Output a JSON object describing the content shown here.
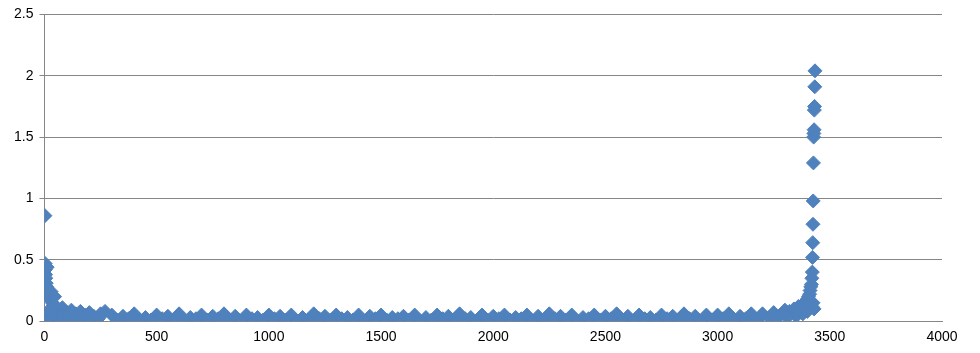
{
  "chart_data": {
    "type": "scatter",
    "color": "#4f81bd",
    "marker": "diamond",
    "grid": true,
    "xlim": [
      0,
      4000
    ],
    "xticks": [
      0,
      500,
      1000,
      1500,
      2000,
      2500,
      3000,
      3500,
      4000
    ],
    "ylim": [
      0,
      2.5
    ],
    "yticks": [
      0,
      0.5,
      1,
      1.5,
      2,
      2.5
    ],
    "x": [
      2,
      3,
      4,
      5,
      6,
      8,
      10,
      12,
      15,
      18,
      20,
      25,
      30,
      35,
      40,
      45,
      50,
      60,
      70,
      80,
      90,
      100,
      120,
      140,
      160,
      180,
      200,
      220,
      250,
      270,
      5,
      15,
      25,
      40,
      60,
      80,
      110,
      150,
      190,
      240,
      300,
      350,
      400,
      450,
      500,
      550,
      600,
      650,
      700,
      750,
      800,
      850,
      900,
      950,
      1000,
      1050,
      1100,
      1150,
      1200,
      1250,
      1300,
      1350,
      1400,
      1450,
      1500,
      1550,
      1600,
      1650,
      1700,
      1750,
      1800,
      1850,
      1900,
      1950,
      2000,
      2050,
      2100,
      2150,
      2200,
      2250,
      2300,
      2350,
      2400,
      2450,
      2500,
      2550,
      2600,
      2650,
      2700,
      2750,
      2800,
      2850,
      2900,
      2950,
      3000,
      3050,
      3100,
      3150,
      3200,
      325,
      375,
      425,
      475,
      525,
      575,
      625,
      675,
      725,
      775,
      825,
      875,
      925,
      975,
      1025,
      1075,
      1125,
      1175,
      1225,
      1275,
      1325,
      1375,
      1425,
      1475,
      1525,
      1575,
      1625,
      1675,
      1725,
      1775,
      1825,
      1875,
      1925,
      1975,
      2025,
      2075,
      2125,
      2175,
      2225,
      2275,
      2325,
      2375,
      2425,
      2475,
      2525,
      2575,
      2625,
      2675,
      2725,
      2775,
      2825,
      2875,
      2925,
      2975,
      3025,
      3075,
      3125,
      3175,
      3200,
      3250,
      3280,
      3300,
      3320,
      3340,
      3360,
      3370,
      3380,
      3390,
      3395,
      3400,
      3405,
      3410,
      3412,
      3415,
      3418,
      3420,
      3422,
      3423,
      3424,
      3425,
      3426,
      3427,
      3428,
      3429,
      3430,
      3431,
      3432,
      3433,
      3434,
      3420,
      3425,
      3430,
      3350,
      3380,
      3400,
      3310,
      3260,
      3230
    ],
    "values": [
      0.86,
      0.47,
      0.42,
      0.38,
      0.35,
      0.31,
      0.28,
      0.44,
      0.25,
      0.22,
      0.2,
      0.18,
      0.24,
      0.15,
      0.13,
      0.2,
      0.12,
      0.1,
      0.09,
      0.11,
      0.08,
      0.07,
      0.09,
      0.06,
      0.08,
      0.05,
      0.07,
      0.04,
      0.06,
      0.08,
      0.05,
      0.08,
      0.03,
      0.05,
      0.02,
      0.04,
      0.03,
      0.02,
      0.01,
      0.02,
      0.05,
      0.04,
      0.06,
      0.03,
      0.05,
      0.04,
      0.06,
      0.03,
      0.05,
      0.04,
      0.06,
      0.04,
      0.05,
      0.03,
      0.05,
      0.04,
      0.05,
      0.03,
      0.06,
      0.04,
      0.05,
      0.03,
      0.05,
      0.04,
      0.05,
      0.03,
      0.04,
      0.05,
      0.03,
      0.05,
      0.04,
      0.06,
      0.03,
      0.05,
      0.04,
      0.05,
      0.03,
      0.05,
      0.04,
      0.06,
      0.04,
      0.05,
      0.03,
      0.05,
      0.04,
      0.06,
      0.04,
      0.05,
      0.03,
      0.05,
      0.04,
      0.06,
      0.04,
      0.05,
      0.05,
      0.06,
      0.04,
      0.06,
      0.05,
      0.01,
      0.02,
      0,
      0.01,
      0.02,
      0.01,
      0,
      0.02,
      0.01,
      0.02,
      0.01,
      0,
      0.02,
      0.01,
      0.02,
      0.01,
      0,
      0.01,
      0.02,
      0.01,
      0.02,
      0.01,
      0,
      0.02,
      0.01,
      0.02,
      0.01,
      0,
      0.01,
      0.02,
      0.01,
      0.02,
      0,
      0.01,
      0.02,
      0.01,
      0.02,
      0,
      0.01,
      0.02,
      0.01,
      0,
      0.02,
      0.01,
      0.02,
      0.01,
      0,
      0.02,
      0.01,
      0.02,
      0.01,
      0.02,
      0,
      0.01,
      0.02,
      0.01,
      0.02,
      0.01,
      0.06,
      0.07,
      0.05,
      0.09,
      0.08,
      0.1,
      0.12,
      0.11,
      0.14,
      0.13,
      0.16,
      0.18,
      0.2,
      0.22,
      0.25,
      0.28,
      0.3,
      0.35,
      0.4,
      0.52,
      0.64,
      0.79,
      0.98,
      1.29,
      1.5,
      1.53,
      1.56,
      1.72,
      1.75,
      1.91,
      2.04,
      0.12,
      0.15,
      0.1,
      0.04,
      0.06,
      0.08,
      0.03,
      0.02,
      0.03
    ]
  }
}
